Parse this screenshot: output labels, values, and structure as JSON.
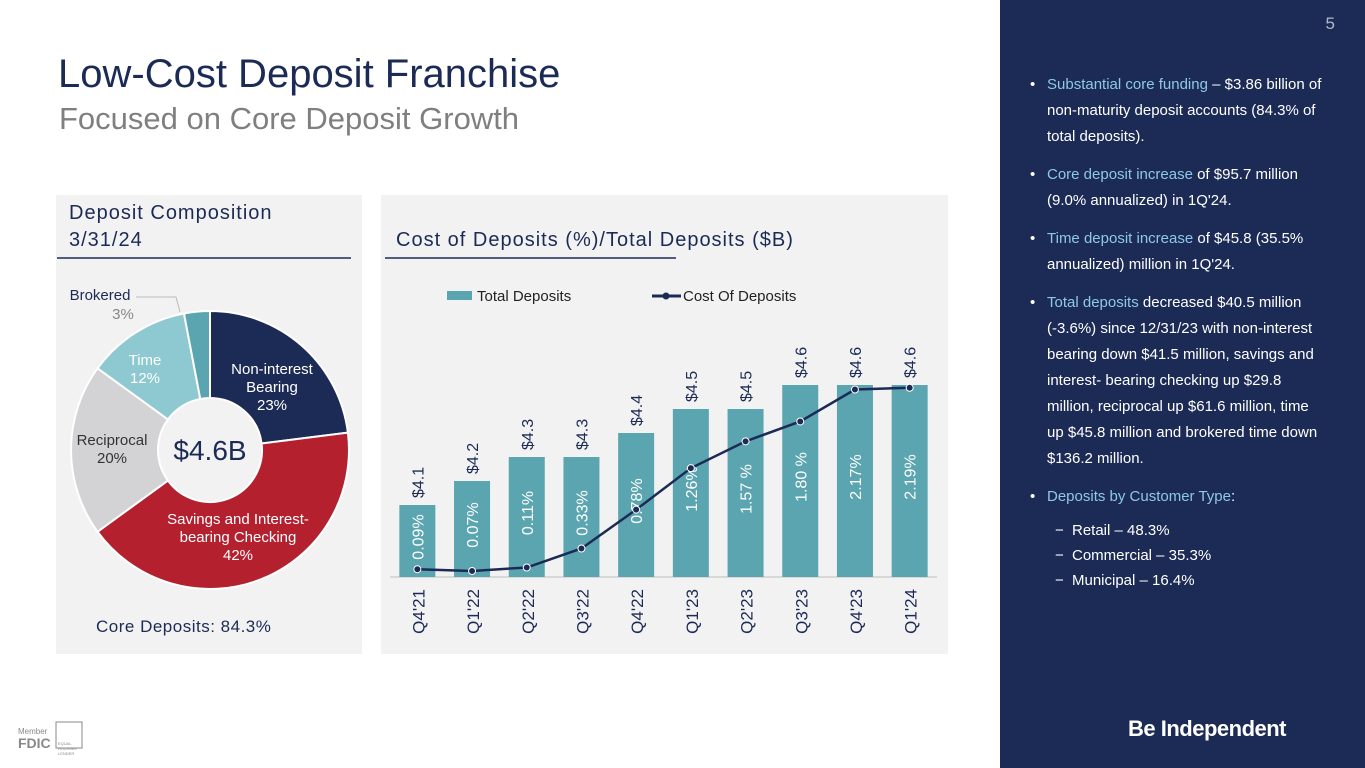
{
  "page_number": "5",
  "title": "Low-Cost Deposit Franchise",
  "subtitle": "Focused on Core Deposit Growth",
  "chart_data": [
    {
      "type": "pie",
      "title": "Deposit Composition 3/31/24",
      "center_label": "$4.6B",
      "annotation": "Core Deposits: 84.3%",
      "categories": [
        "Non-interest Bearing",
        "Savings and Interest-bearing Checking",
        "Reciprocal",
        "Time",
        "Brokered"
      ],
      "values": [
        23,
        42,
        20,
        12,
        3
      ],
      "value_labels": [
        "23%",
        "42%",
        "20%",
        "12%",
        "3%"
      ],
      "colors": [
        "#1c2b55",
        "#b5202e",
        "#d3d3d6",
        "#8ec8d0",
        "#5aa5b0"
      ]
    },
    {
      "type": "bar_line",
      "title": "Cost of Deposits (%)/Total Deposits ($B)",
      "categories": [
        "Q4'21",
        "Q1'22",
        "Q2'22",
        "Q3'22",
        "Q4'22",
        "Q1'23",
        "Q2'23",
        "Q3'23",
        "Q4'23",
        "Q1'24"
      ],
      "series": [
        {
          "name": "Total Deposits",
          "color": "#5aa5b0",
          "values": [
            4.1,
            4.2,
            4.3,
            4.3,
            4.4,
            4.5,
            4.5,
            4.6,
            4.6,
            4.6
          ],
          "value_labels": [
            "$4.1",
            "$4.2",
            "$4.3",
            "$4.3",
            "$4.4",
            "$4.5",
            "$4.5",
            "$4.6",
            "$4.6",
            "$4.6"
          ]
        },
        {
          "name": "Cost Of Deposits",
          "color": "#1c2b55",
          "axis": "y2",
          "values": [
            0.09,
            0.07,
            0.11,
            0.33,
            0.78,
            1.26,
            1.57,
            1.8,
            2.17,
            2.19
          ],
          "value_labels": [
            "0.09%",
            "0.07%",
            "0.11%",
            "0.33%",
            "0.78%",
            "1.26%",
            "1.57 %",
            "1.80 %",
            "2.17%",
            "2.19%"
          ]
        }
      ],
      "ylim": [
        3.8,
        4.7
      ],
      "y2lim": [
        0,
        2.5
      ],
      "legend": "top"
    }
  ],
  "sidebar": {
    "bullets": [
      {
        "lead": "Substantial core funding",
        "text": " – $3.86 billion of non-maturity deposit accounts (84.3% of total deposits)."
      },
      {
        "lead": "Core deposit increase",
        "text": " of $95.7 million (9.0% annualized) in 1Q'24."
      },
      {
        "lead": "Time deposit increase",
        "text": " of $45.8 (35.5% annualized) million in 1Q'24."
      },
      {
        "lead": "Total deposits",
        "text": " decreased $40.5 million (-3.6%) since 12/31/23 with non-interest bearing down $41.5 million, savings and interest- bearing checking up $29.8 million, reciprocal up $61.6 million, time up $45.8 million and brokered time down $136.2 million."
      },
      {
        "lead": "Deposits by Customer Type",
        "text": ":"
      }
    ],
    "sub_items": [
      "Retail – 48.3%",
      "Commercial – 35.3%",
      "Municipal – 16.4%"
    ]
  },
  "footer": {
    "member": "Member",
    "fdic": "FDIC",
    "ehl": "EQUAL HOUSING LENDER",
    "logo": "Be Independent"
  }
}
